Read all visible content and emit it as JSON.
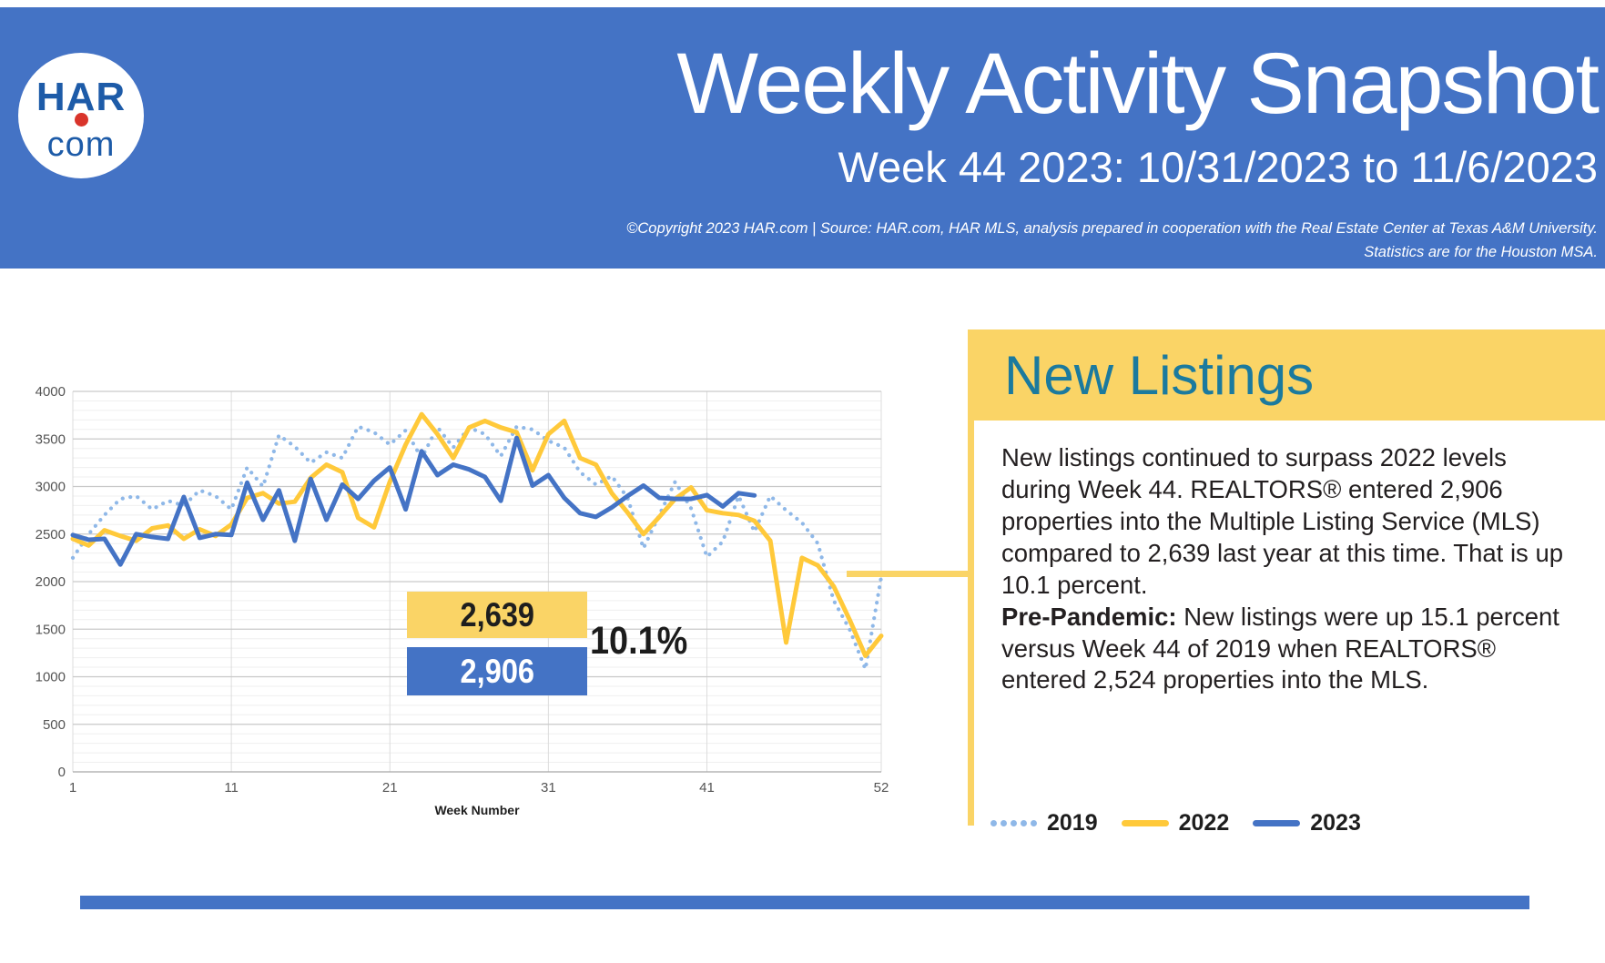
{
  "header": {
    "logo_line1": "HAR",
    "logo_line2": "com",
    "title": "Weekly Activity Snapshot",
    "subtitle": "Week 44 2023: 10/31/2023 to 11/6/2023",
    "copyright_line1": "©Copyright 2023 HAR.com  |  Source: HAR.com, HAR MLS, analysis prepared in cooperation with the Real Estate Center at Texas A&M University.",
    "copyright_line2": "Statistics are for the Houston MSA."
  },
  "panel": {
    "title": "New Listings",
    "paragraph1": "New listings continued to surpass 2022 levels during Week 44. REALTORS® entered 2,906 properties into the Multiple Listing Service (MLS) compared to 2,639 last year at this time. That is up 10.1 percent.",
    "pre_pandemic_label": "Pre-Pandemic:",
    "paragraph2": " New listings were up 15.1 percent versus Week 44 of 2019 when REALTORS® entered 2,524 properties into the MLS."
  },
  "annotations": {
    "value_2022": "2,639",
    "value_2023": "2,906",
    "pct_change": "10.1%"
  },
  "legend": [
    {
      "label": "2019",
      "style": "dotted",
      "color": "#8FB8E8"
    },
    {
      "label": "2022",
      "style": "solid",
      "color": "#FFC93A"
    },
    {
      "label": "2023",
      "style": "solid",
      "color": "#4473C5"
    }
  ],
  "colors": {
    "header_blue": "#4473C5",
    "accent_yellow": "#FAD466",
    "line_2019": "#8FB8E8",
    "line_2022": "#FFC93A",
    "line_2023": "#4473C5",
    "panel_title_teal": "#1B7A9E",
    "logo_blue": "#1d5ba8",
    "logo_red": "#D9342B",
    "text_dark": "#231f20"
  },
  "chart_data": {
    "type": "line",
    "title": "",
    "xlabel": "Week Number",
    "ylabel": "",
    "x_start": 1,
    "x_end": 52,
    "x_ticks": [
      1,
      11,
      21,
      31,
      41,
      52
    ],
    "ylim": [
      0,
      4000
    ],
    "y_major_step": 500,
    "y_minor_step": 100,
    "grid": true,
    "legend_position": "bottom-right",
    "series": [
      {
        "name": "2019",
        "dash": "dotted",
        "color": "#8FB8E8",
        "values": [
          2250,
          2500,
          2700,
          2870,
          2900,
          2760,
          2850,
          2800,
          2960,
          2900,
          2760,
          3200,
          3000,
          3540,
          3420,
          3250,
          3360,
          3300,
          3630,
          3570,
          3440,
          3590,
          3300,
          3625,
          3410,
          3620,
          3550,
          3320,
          3630,
          3600,
          3480,
          3410,
          3150,
          3020,
          3110,
          2880,
          2350,
          2700,
          3050,
          2770,
          2260,
          2420,
          2900,
          2524,
          2900,
          2750,
          2620,
          2400,
          1800,
          1500,
          1080,
          2050
        ]
      },
      {
        "name": "2022",
        "dash": "solid",
        "color": "#FFC93A",
        "values": [
          2450,
          2380,
          2540,
          2480,
          2430,
          2560,
          2590,
          2450,
          2550,
          2480,
          2600,
          2880,
          2930,
          2820,
          2840,
          3090,
          3230,
          3150,
          2670,
          2570,
          3050,
          3440,
          3760,
          3550,
          3300,
          3620,
          3690,
          3620,
          3570,
          3170,
          3550,
          3690,
          3300,
          3230,
          2930,
          2725,
          2500,
          2680,
          2870,
          2990,
          2750,
          2720,
          2700,
          2639,
          2430,
          1360,
          2250,
          2170,
          1950,
          1600,
          1220,
          1430
        ]
      },
      {
        "name": "2023",
        "dash": "solid",
        "color": "#4473C5",
        "values": [
          2490,
          2440,
          2450,
          2180,
          2500,
          2470,
          2450,
          2890,
          2460,
          2500,
          2490,
          3040,
          2650,
          2960,
          2430,
          3080,
          2650,
          3020,
          2870,
          3060,
          3200,
          2760,
          3370,
          3120,
          3230,
          3180,
          3100,
          2850,
          3510,
          3010,
          3120,
          2880,
          2720,
          2680,
          2780,
          2900,
          3010,
          2880,
          2870,
          2870,
          2910,
          2790,
          2930,
          2906
        ]
      }
    ]
  }
}
